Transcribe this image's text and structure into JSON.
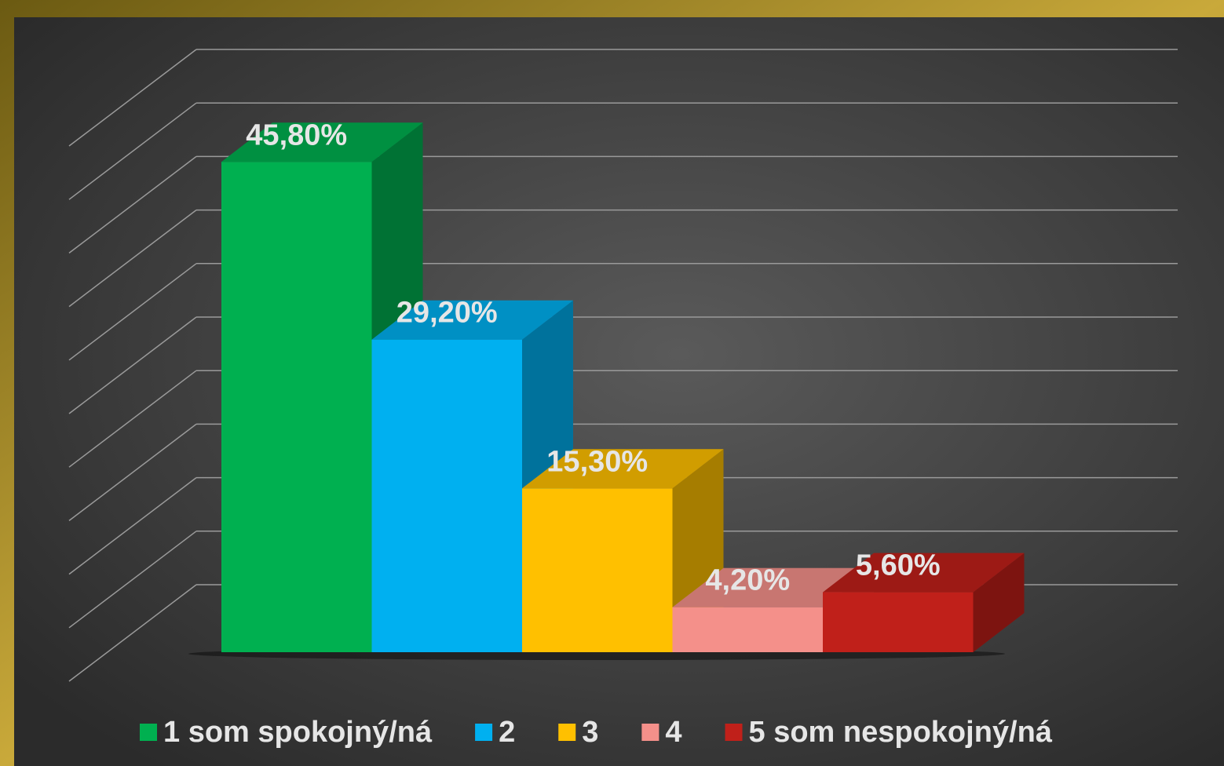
{
  "chart_data": {
    "type": "bar3d",
    "series": [
      {
        "name": "1 som spokojný/ná",
        "color": "#00b050",
        "values": [
          45.8
        ],
        "value_labels": [
          "45,80%"
        ]
      },
      {
        "name": "2",
        "color": "#00b0f0",
        "values": [
          29.2
        ],
        "value_labels": [
          "29,20%"
        ]
      },
      {
        "name": "3",
        "color": "#ffc000",
        "values": [
          15.3
        ],
        "value_labels": [
          "15,30%"
        ]
      },
      {
        "name": "4",
        "color": "#f4908a",
        "values": [
          4.2
        ],
        "value_labels": [
          "4,20%"
        ]
      },
      {
        "name": "5 som nespokojný/ná",
        "color": "#c0201a",
        "values": [
          5.6
        ],
        "value_labels": [
          "5,60%"
        ]
      }
    ],
    "ylim": [
      0,
      50
    ],
    "yticks": [
      0,
      5,
      10,
      15,
      20,
      25,
      30,
      35,
      40,
      45,
      50
    ],
    "grid": true,
    "legend": "bottom"
  }
}
